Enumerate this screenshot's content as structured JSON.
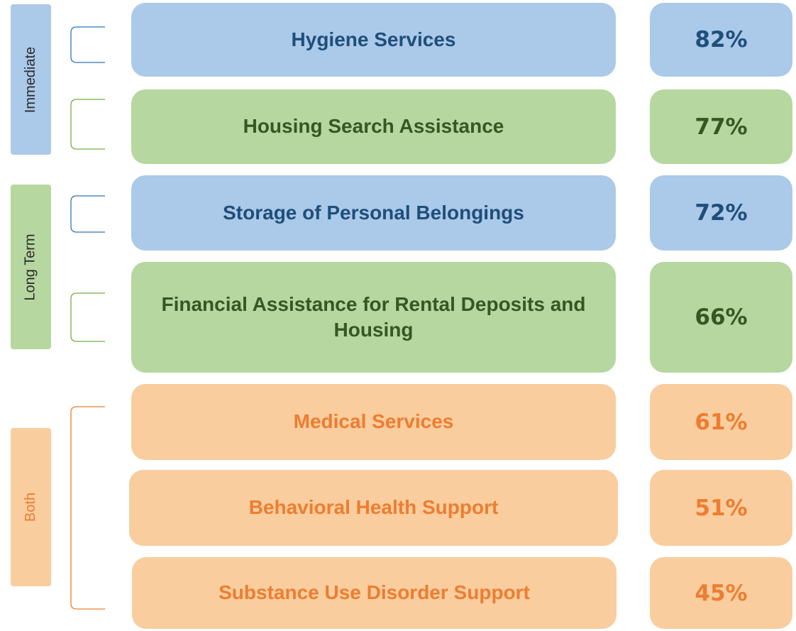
{
  "groups": [
    {
      "label": "Immediate"
    },
    {
      "label": "Long Term"
    },
    {
      "label": "Both"
    }
  ],
  "items": [
    {
      "label": "Hygiene Services",
      "value": "82%"
    },
    {
      "label": "Housing Search Assistance",
      "value": "77%"
    },
    {
      "label": "Storage of Personal Belongings",
      "value": "72%"
    },
    {
      "label": "Financial Assistance for Rental Deposits and Housing",
      "value": "66%"
    },
    {
      "label": "Medical Services",
      "value": "61%"
    },
    {
      "label": "Behavioral Health Support",
      "value": "51%"
    },
    {
      "label": "Substance Use Disorder Support",
      "value": "45%"
    }
  ]
}
